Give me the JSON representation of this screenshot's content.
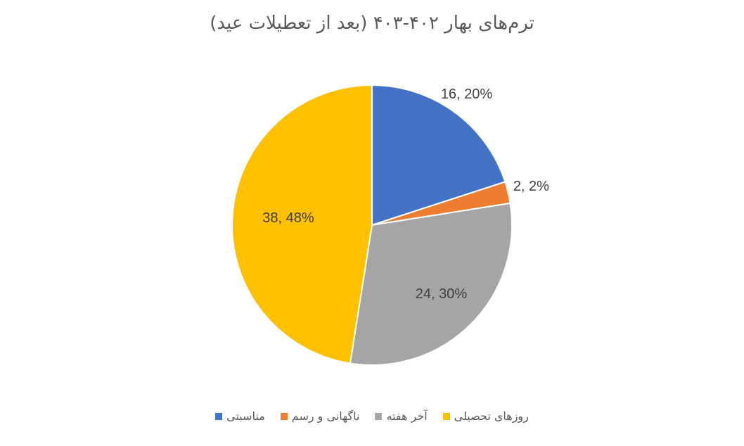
{
  "chart_data": {
    "type": "pie",
    "title": "ترم‌های بهار ۴۰۲-۴۰۳ (بعد از تعطیلات عید)",
    "categories": [
      "مناسبتی",
      "ناگهانی و رسم",
      "آخر هفته",
      "روزهای تحصیلی"
    ],
    "values": [
      16,
      2,
      24,
      38
    ],
    "value_labels": [
      "16, 20%",
      "2, 2%",
      "24, 30%",
      "38, 48%"
    ],
    "colors": [
      "#4472c4",
      "#ed7d31",
      "#a5a5a5",
      "#ffc000"
    ],
    "legend": "bottom"
  }
}
